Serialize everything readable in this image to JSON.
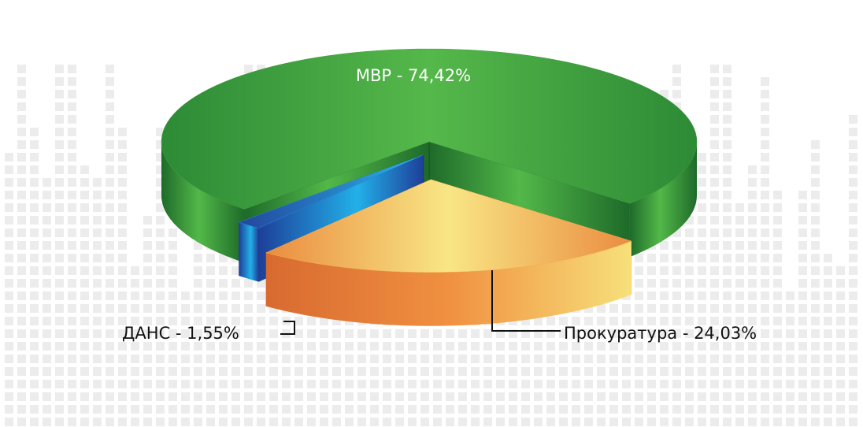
{
  "chart_data": {
    "type": "pie",
    "values": [
      74.42,
      1.55,
      24.03
    ],
    "value_labels": [
      "МВР - 74,42%",
      "ДАНС - 1,55%",
      "Прокуратура - 24,03%"
    ],
    "colors": [
      "#3f9e3c",
      "#2a8fd6",
      "#f0b050"
    ]
  }
}
